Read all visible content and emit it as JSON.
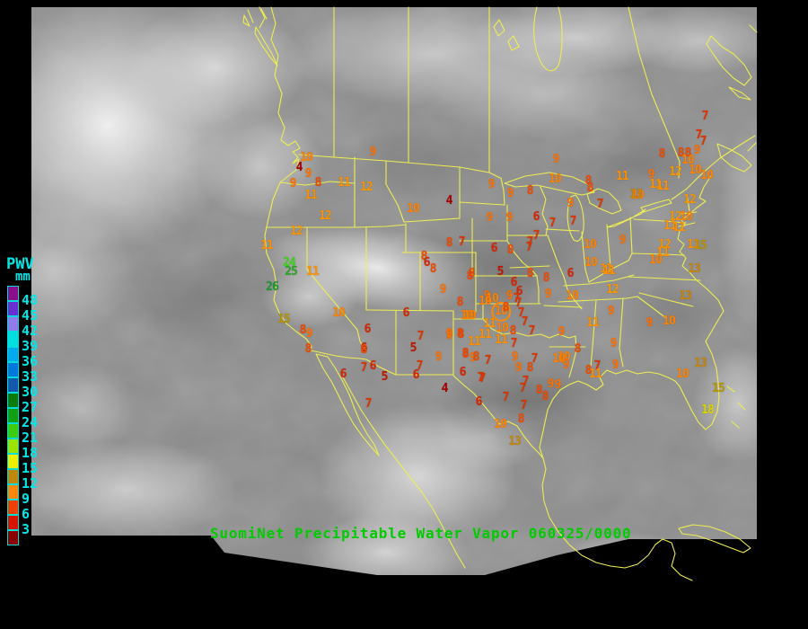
{
  "title": {
    "text": "SuomiNet Precipitable Water Vapor 060325/0000",
    "color": "#00cc00"
  },
  "legend": {
    "title": "PWV",
    "units": "mm",
    "label_color": "#00e8e8",
    "entries": [
      {
        "value": "48",
        "color": "#8a0d8a"
      },
      {
        "value": "45",
        "color": "#6a2fd0"
      },
      {
        "value": "42",
        "color": "#8f7ce8"
      },
      {
        "value": "39",
        "color": "#00dede"
      },
      {
        "value": "36",
        "color": "#00a8ee"
      },
      {
        "value": "33",
        "color": "#0077dd"
      },
      {
        "value": "30",
        "color": "#1458ae"
      },
      {
        "value": "27",
        "color": "#0a7a0a"
      },
      {
        "value": "24",
        "color": "#12a012"
      },
      {
        "value": "21",
        "color": "#3ccc10"
      },
      {
        "value": "18",
        "color": "#9ce400"
      },
      {
        "value": "15",
        "color": "#eeee00"
      },
      {
        "value": "12",
        "color": "#bd880b"
      },
      {
        "value": "9",
        "color": "#ff860d"
      },
      {
        "value": "6",
        "color": "#ef4000"
      },
      {
        "value": "3",
        "color": "#d81400"
      },
      {
        "value": "",
        "color": "#8a0000"
      }
    ]
  },
  "map": {
    "line_color": "#eded52",
    "background_color": "#000000",
    "region": "North America satellite view"
  },
  "value_colors": {
    "4": "#a80000",
    "5": "#c41400",
    "6": "#d82400",
    "7": "#e03400",
    "8": "#f04a00",
    "9": "#ff7000",
    "10": "#ff8200",
    "11": "#ff9000",
    "12": "#f89700",
    "13": "#c8860a",
    "15": "#b89400",
    "18": "#d8d800",
    "24": "#3ed41e",
    "25": "#28a828",
    "26": "#1e9632"
  },
  "stations": [
    [
      9,
      415,
      170
    ],
    [
      10,
      341,
      176
    ],
    [
      4,
      333,
      187
    ],
    [
      9,
      343,
      194
    ],
    [
      9,
      326,
      205
    ],
    [
      8,
      354,
      204
    ],
    [
      11,
      383,
      204
    ],
    [
      12,
      408,
      209
    ],
    [
      11,
      346,
      218
    ],
    [
      12,
      362,
      241
    ],
    [
      12,
      330,
      258
    ],
    [
      11,
      297,
      274
    ],
    [
      24,
      322,
      293
    ],
    [
      25,
      324,
      303
    ],
    [
      26,
      303,
      320
    ],
    [
      11,
      348,
      303
    ],
    [
      10,
      377,
      349
    ],
    [
      15,
      316,
      356
    ],
    [
      8,
      337,
      368
    ],
    [
      9,
      344,
      372
    ],
    [
      8,
      343,
      389
    ],
    [
      6,
      409,
      367
    ],
    [
      6,
      405,
      388
    ],
    [
      6,
      382,
      417
    ],
    [
      7,
      410,
      450
    ],
    [
      6,
      452,
      349
    ],
    [
      10,
      520,
      352
    ],
    [
      7,
      468,
      375
    ],
    [
      9,
      500,
      374
    ],
    [
      8,
      513,
      373
    ],
    [
      5,
      460,
      388
    ],
    [
      8,
      405,
      390
    ],
    [
      9,
      488,
      398
    ],
    [
      8,
      518,
      394
    ],
    [
      9,
      526,
      399
    ],
    [
      7,
      405,
      410
    ],
    [
      6,
      415,
      408
    ],
    [
      7,
      467,
      408
    ],
    [
      5,
      428,
      420
    ],
    [
      6,
      463,
      418
    ],
    [
      6,
      515,
      415
    ],
    [
      7,
      535,
      421
    ],
    [
      4,
      495,
      433
    ],
    [
      6,
      533,
      448
    ],
    [
      9,
      547,
      206
    ],
    [
      9,
      568,
      216
    ],
    [
      8,
      590,
      213
    ],
    [
      4,
      500,
      224
    ],
    [
      10,
      460,
      233
    ],
    [
      9,
      545,
      243
    ],
    [
      9,
      567,
      243
    ],
    [
      6,
      597,
      242
    ],
    [
      7,
      597,
      263
    ],
    [
      8,
      500,
      271
    ],
    [
      7,
      514,
      270
    ],
    [
      6,
      550,
      277
    ],
    [
      8,
      568,
      279
    ],
    [
      7,
      589,
      276
    ],
    [
      8,
      472,
      286
    ],
    [
      6,
      475,
      293
    ],
    [
      8,
      482,
      300
    ],
    [
      5,
      557,
      303
    ],
    [
      8,
      525,
      305
    ],
    [
      9,
      619,
      178
    ],
    [
      10,
      618,
      200
    ],
    [
      8,
      655,
      202
    ],
    [
      8,
      657,
      210
    ],
    [
      11,
      693,
      197
    ],
    [
      10,
      710,
      218
    ],
    [
      9,
      635,
      227
    ],
    [
      7,
      668,
      228
    ],
    [
      7,
      638,
      247
    ],
    [
      7,
      615,
      249
    ],
    [
      9,
      693,
      268
    ],
    [
      7,
      590,
      270
    ],
    [
      10,
      657,
      273
    ],
    [
      7,
      785,
      130
    ],
    [
      7,
      778,
      151
    ],
    [
      7,
      783,
      158
    ],
    [
      9,
      776,
      168
    ],
    [
      8,
      737,
      172
    ],
    [
      8,
      758,
      171
    ],
    [
      8,
      766,
      171
    ],
    [
      10,
      766,
      179
    ],
    [
      12,
      752,
      192
    ],
    [
      10,
      774,
      190
    ],
    [
      10,
      787,
      196
    ],
    [
      9,
      725,
      195
    ],
    [
      11,
      730,
      206
    ],
    [
      11,
      738,
      208
    ],
    [
      13,
      708,
      217
    ],
    [
      12,
      768,
      223
    ],
    [
      12,
      752,
      242
    ],
    [
      10,
      764,
      242
    ],
    [
      11,
      746,
      252
    ],
    [
      11,
      756,
      254
    ],
    [
      12,
      740,
      273
    ],
    [
      11,
      738,
      282
    ],
    [
      10,
      730,
      290
    ],
    [
      11,
      772,
      273
    ],
    [
      15,
      780,
      274
    ],
    [
      13,
      773,
      300
    ],
    [
      11,
      675,
      300
    ],
    [
      8,
      523,
      308
    ],
    [
      8,
      590,
      305
    ],
    [
      8,
      608,
      310
    ],
    [
      6,
      635,
      305
    ],
    [
      10,
      658,
      293
    ],
    [
      11,
      678,
      302
    ],
    [
      9,
      493,
      323
    ],
    [
      6,
      572,
      315
    ],
    [
      6,
      578,
      325
    ],
    [
      9,
      542,
      330
    ],
    [
      9,
      610,
      328
    ],
    [
      8,
      512,
      337
    ],
    [
      10,
      548,
      333
    ],
    [
      9,
      567,
      330
    ],
    [
      7,
      575,
      333
    ],
    [
      10,
      637,
      330
    ],
    [
      12,
      682,
      323
    ],
    [
      13,
      763,
      330
    ],
    [
      9,
      680,
      347
    ],
    [
      11,
      660,
      360
    ],
    [
      9,
      723,
      360
    ],
    [
      10,
      745,
      358
    ],
    [
      9,
      625,
      370
    ],
    [
      9,
      683,
      383
    ],
    [
      8,
      643,
      389
    ],
    [
      10,
      628,
      398
    ],
    [
      9,
      630,
      407
    ],
    [
      9,
      685,
      407
    ],
    [
      7,
      665,
      408
    ],
    [
      8,
      655,
      413
    ],
    [
      11,
      663,
      417
    ],
    [
      13,
      780,
      405
    ],
    [
      10,
      760,
      417
    ],
    [
      15,
      800,
      433
    ],
    [
      18,
      788,
      457
    ],
    [
      10,
      540,
      336
    ],
    [
      10,
      558,
      347,
      1
    ],
    [
      7,
      577,
      338
    ],
    [
      7,
      580,
      349
    ],
    [
      8,
      563,
      343
    ],
    [
      11,
      545,
      361
    ],
    [
      10,
      559,
      366
    ],
    [
      8,
      571,
      369
    ],
    [
      7,
      584,
      359
    ],
    [
      7,
      592,
      369
    ],
    [
      11,
      540,
      373
    ],
    [
      11,
      558,
      379
    ],
    [
      7,
      572,
      383
    ],
    [
      10,
      523,
      352
    ],
    [
      9,
      500,
      372
    ],
    [
      8,
      512,
      372
    ],
    [
      11,
      528,
      381
    ],
    [
      8,
      518,
      395
    ],
    [
      8,
      530,
      398
    ],
    [
      7,
      543,
      402
    ],
    [
      9,
      573,
      398
    ],
    [
      7,
      595,
      400
    ],
    [
      9,
      577,
      410
    ],
    [
      8,
      590,
      410
    ],
    [
      10,
      622,
      400
    ],
    [
      7,
      537,
      422
    ],
    [
      7,
      585,
      425
    ],
    [
      7,
      582,
      433
    ],
    [
      8,
      600,
      435
    ],
    [
      9,
      613,
      428
    ],
    [
      9,
      621,
      429
    ],
    [
      8,
      607,
      442
    ],
    [
      7,
      563,
      443
    ],
    [
      7,
      583,
      452
    ],
    [
      8,
      580,
      467
    ],
    [
      10,
      557,
      473
    ],
    [
      13,
      573,
      492
    ]
  ]
}
